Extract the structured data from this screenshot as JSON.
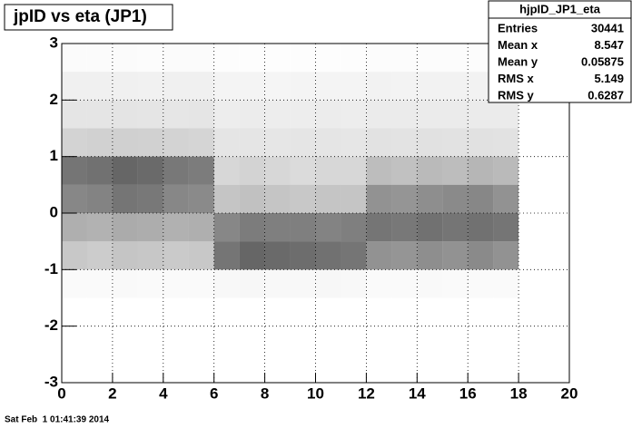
{
  "chart_data": {
    "type": "density-scatter",
    "title": "jpID vs eta (JP1)",
    "xbins": [
      0,
      1,
      2,
      3,
      4,
      5,
      6,
      7,
      8,
      9,
      10,
      11,
      12,
      13,
      14,
      15,
      16,
      17,
      18
    ],
    "ybins": [
      -1.5,
      -1,
      -0.5,
      0,
      0.5,
      1,
      1.5,
      2,
      2.5,
      3
    ],
    "z": [
      [
        15,
        14,
        16,
        15,
        14,
        15,
        20,
        22,
        20,
        19,
        21,
        20,
        15,
        14,
        16,
        15,
        14,
        15
      ],
      [
        150,
        140,
        160,
        155,
        145,
        150,
        380,
        420,
        410,
        400,
        390,
        380,
        300,
        290,
        310,
        300,
        320,
        300
      ],
      [
        220,
        210,
        230,
        225,
        215,
        220,
        330,
        360,
        350,
        350,
        340,
        350,
        380,
        370,
        390,
        380,
        390,
        380
      ],
      [
        330,
        340,
        380,
        370,
        330,
        320,
        160,
        170,
        160,
        150,
        160,
        160,
        300,
        290,
        310,
        320,
        330,
        300
      ],
      [
        380,
        390,
        420,
        410,
        370,
        360,
        110,
        120,
        110,
        100,
        110,
        110,
        180,
        170,
        190,
        180,
        200,
        190
      ],
      [
        120,
        125,
        130,
        125,
        120,
        115,
        70,
        72,
        68,
        70,
        70,
        68,
        80,
        78,
        82,
        80,
        82,
        80
      ],
      [
        70,
        72,
        74,
        70,
        68,
        70,
        50,
        52,
        48,
        50,
        52,
        50,
        55,
        54,
        56,
        55,
        56,
        55
      ],
      [
        40,
        42,
        40,
        38,
        40,
        40,
        30,
        31,
        29,
        30,
        31,
        30,
        35,
        34,
        36,
        35,
        36,
        35
      ],
      [
        10,
        11,
        10,
        9,
        10,
        10,
        5,
        6,
        5,
        5,
        6,
        5,
        8,
        7,
        9,
        8,
        9,
        8
      ]
    ],
    "xlim": [
      0,
      20
    ],
    "ylim": [
      -3,
      3
    ],
    "xticks": [
      0,
      2,
      4,
      6,
      8,
      10,
      12,
      14,
      16,
      18,
      20
    ],
    "yticks": [
      -3,
      -2,
      -1,
      0,
      1,
      2,
      3
    ],
    "grid": true,
    "color": "#000000",
    "stats": {
      "title": "hjpID_JP1_eta",
      "rows": [
        [
          "Entries",
          30441
        ],
        [
          "Mean x",
          8.547
        ],
        [
          "Mean y",
          0.05875
        ],
        [
          "RMS x",
          5.149
        ],
        [
          "RMS y",
          0.6287
        ]
      ]
    }
  },
  "footer": "Sat Feb  1 01:41:39 2014"
}
